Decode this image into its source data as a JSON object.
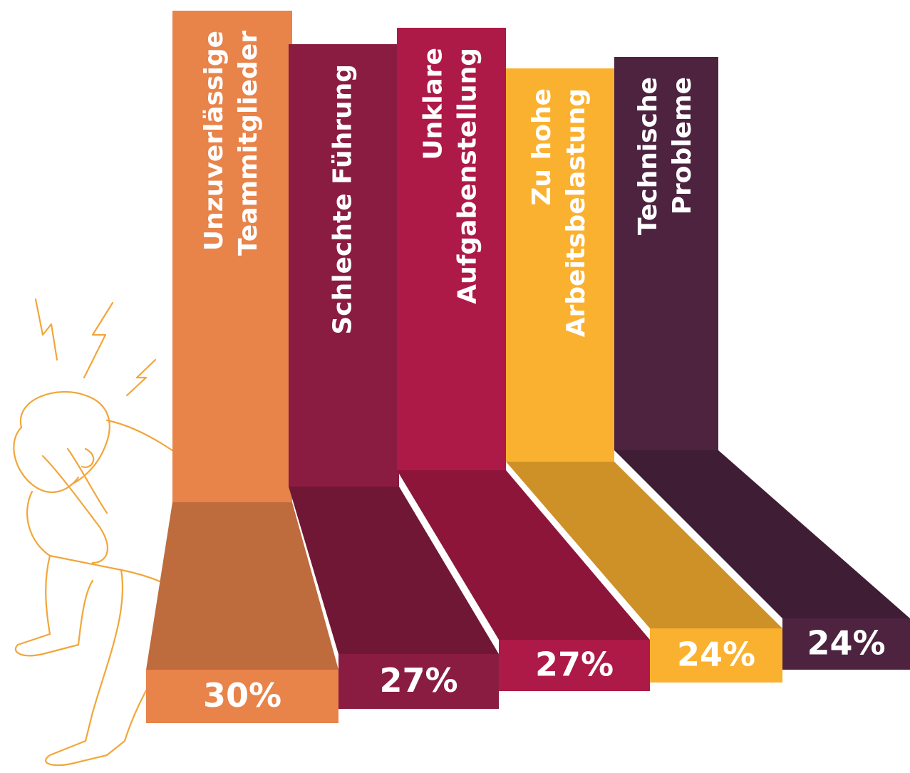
{
  "chart_data": {
    "type": "bar3d",
    "categories": [
      "Unzuverlässige\nTeammitglieder",
      "Schlechte Führung",
      "Unklare\nAufgabenstellung",
      "Zu hohe\nArbeitsbelastung",
      "Technische\nProbleme"
    ],
    "values": [
      30,
      27,
      27,
      24,
      24
    ],
    "value_labels": [
      "30%",
      "27%",
      "27%",
      "24%",
      "24%"
    ],
    "colors": [
      "#e8834a",
      "#8a1c42",
      "#ad1a47",
      "#fbb130",
      "#4d2340"
    ]
  }
}
